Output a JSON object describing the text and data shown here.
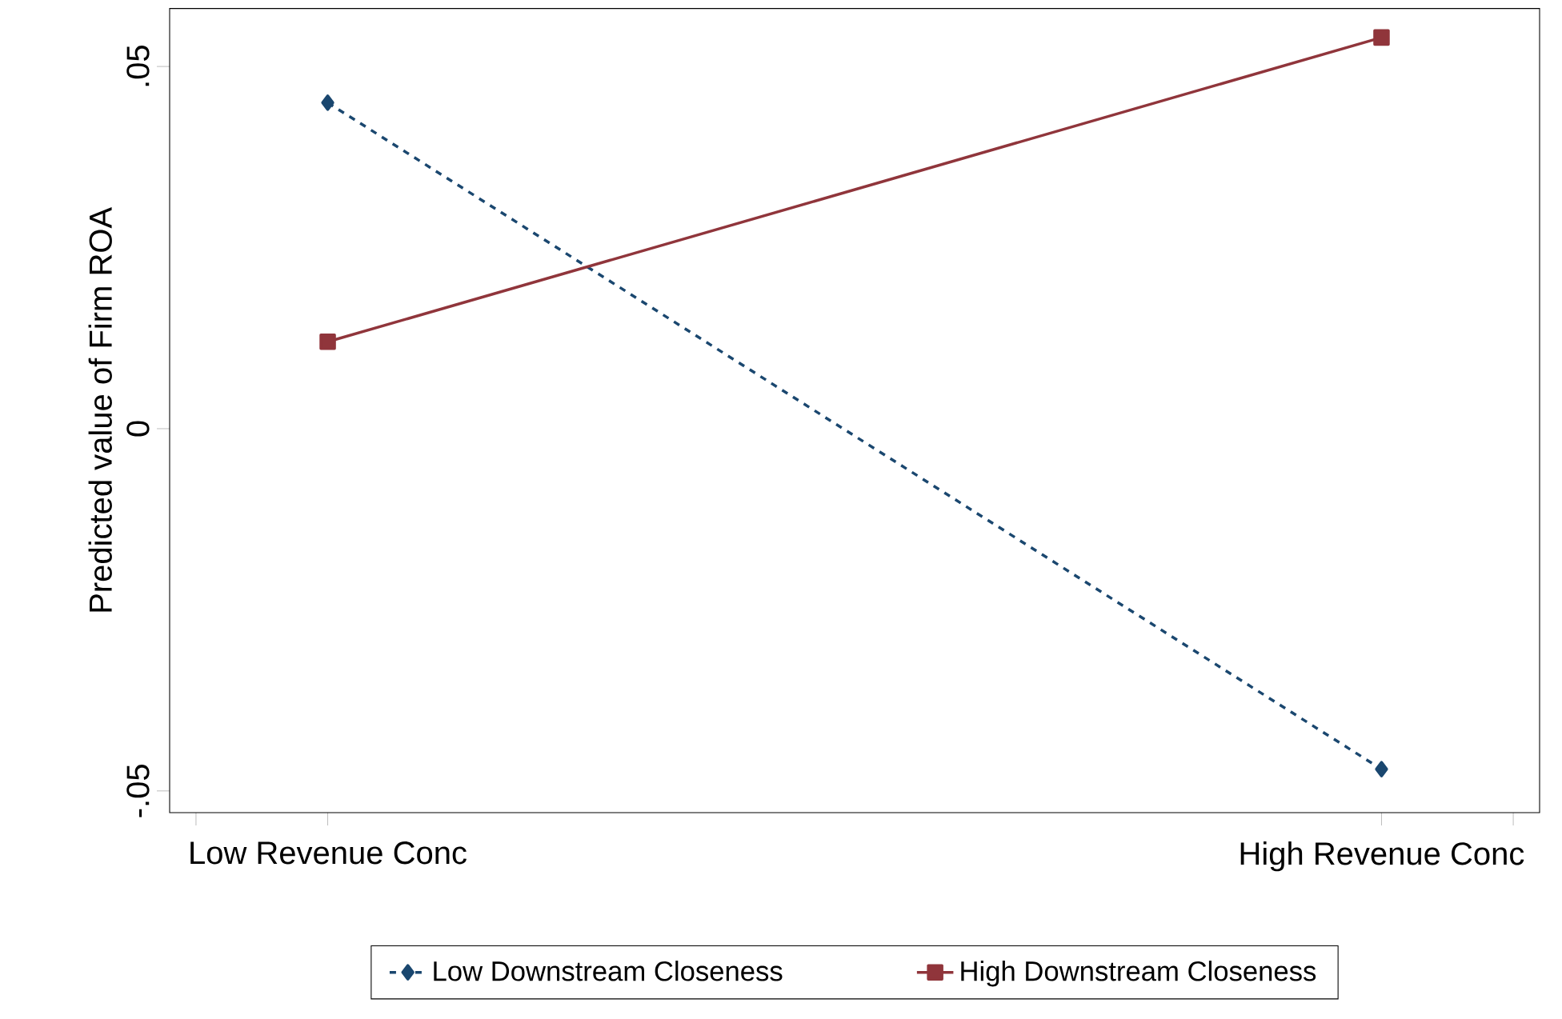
{
  "chart_data": {
    "type": "line",
    "ylabel": "Predicted value of Firm ROA",
    "categories": [
      "Low Revenue Conc",
      "High Revenue Conc"
    ],
    "ylim": [
      -0.053,
      0.058
    ],
    "yticks": [
      {
        "value": -0.05,
        "label": "-.05"
      },
      {
        "value": 0,
        "label": "0"
      },
      {
        "value": 0.05,
        "label": ".05"
      }
    ],
    "series": [
      {
        "name": "Low Downstream Closeness",
        "color": "#1a476f",
        "values": [
          0.045,
          -0.047
        ],
        "marker": "diamond",
        "line_style": "dashed"
      },
      {
        "name": "High Downstream Closeness",
        "color": "#90353b",
        "values": [
          0.012,
          0.054
        ],
        "marker": "square",
        "line_style": "solid"
      }
    ],
    "grid": false,
    "legend": "bottom"
  }
}
